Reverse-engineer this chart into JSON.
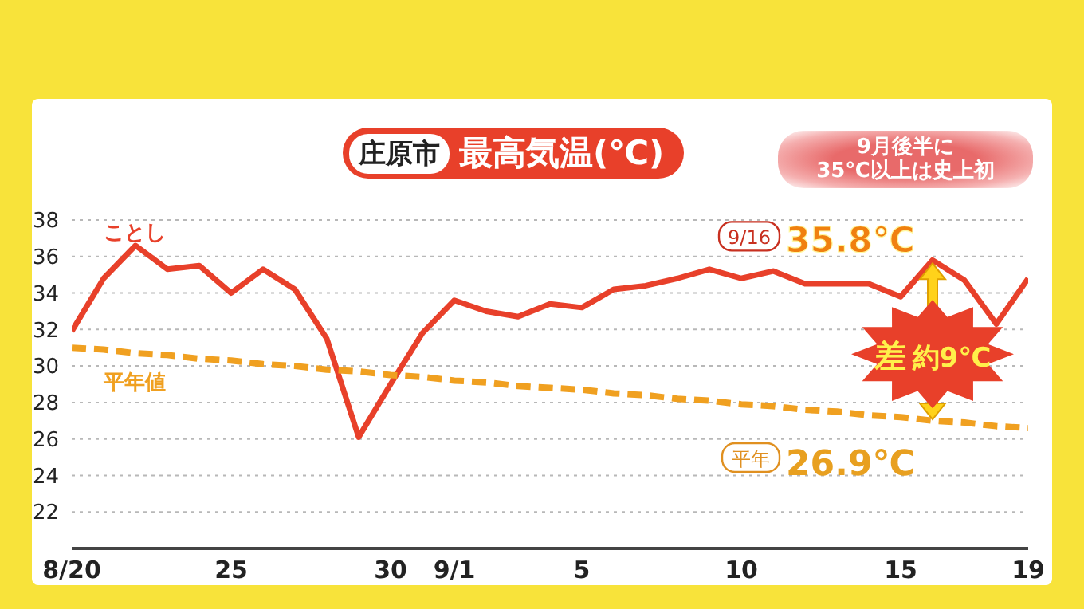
{
  "chart_data": {
    "type": "line",
    "title": "最高気温(℃)",
    "subtitle": "庄原市",
    "x": [
      "--08-20",
      "--08-21",
      "--08-22",
      "--08-23",
      "--08-24",
      "--08-25",
      "--08-26",
      "--08-27",
      "--08-28",
      "--08-29",
      "--08-30",
      "--08-31",
      "--09-01",
      "--09-02",
      "--09-03",
      "--09-04",
      "--09-05",
      "--09-06",
      "--09-07",
      "--09-08",
      "--09-09",
      "--09-10",
      "--09-11",
      "--09-12",
      "--09-13",
      "--09-14",
      "--09-15",
      "--09-16",
      "--09-17",
      "--09-18",
      "--09-19"
    ],
    "series": [
      {
        "name": "ことし",
        "color": "#e8402a",
        "line_style": "solid",
        "values": [
          31.9,
          34.8,
          36.6,
          35.3,
          35.5,
          34.0,
          35.3,
          34.2,
          31.5,
          26.1,
          29.0,
          31.8,
          33.6,
          33.0,
          32.7,
          33.4,
          33.2,
          34.2,
          34.4,
          34.8,
          35.3,
          34.8,
          35.2,
          34.5,
          34.5,
          34.5,
          33.8,
          35.8,
          34.7,
          32.3,
          34.8
        ]
      },
      {
        "name": "平年値",
        "color": "#f0a020",
        "line_style": "dashed",
        "values": [
          31.0,
          30.9,
          30.7,
          30.6,
          30.4,
          30.3,
          30.1,
          30.0,
          29.8,
          29.7,
          29.5,
          29.4,
          29.2,
          29.1,
          28.9,
          28.8,
          28.7,
          28.5,
          28.4,
          28.2,
          28.1,
          27.9,
          27.8,
          27.6,
          27.5,
          27.3,
          27.2,
          27.0,
          26.9,
          26.7,
          26.6
        ]
      }
    ],
    "xlim": [
      "--08-20",
      "--09-19"
    ],
    "xticks": [
      {
        "value": "--08-20",
        "label": "8/20"
      },
      {
        "value": "--08-25",
        "label": "25"
      },
      {
        "value": "--08-30",
        "label": "30"
      },
      {
        "value": "--09-01",
        "label": "9/1"
      },
      {
        "value": "--09-05",
        "label": "5"
      },
      {
        "value": "--09-10",
        "label": "10"
      },
      {
        "value": "--09-15",
        "label": "15"
      },
      {
        "value": "--09-19",
        "label": "19"
      }
    ],
    "ylim": [
      20,
      38
    ],
    "yticks": [
      22,
      24,
      26,
      28,
      30,
      32,
      34,
      36,
      38
    ],
    "grid": "y",
    "marker": "none",
    "annotations": [
      "9月後半に\n35℃以上は史上初",
      {
        "text": "9/16 35.8℃",
        "x": "--09-16",
        "y": 35.8
      },
      {
        "text": "平年 26.9℃",
        "x": "--09-16",
        "y": 26.9
      },
      "差 約9℃"
    ]
  }
}
